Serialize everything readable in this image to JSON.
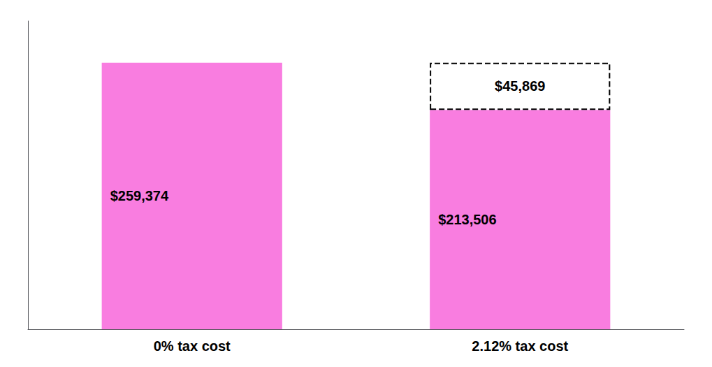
{
  "chart_data": {
    "type": "bar",
    "stacked": true,
    "categories": [
      "0% tax cost",
      "2.12% tax cost"
    ],
    "series": [
      {
        "color": "#f97de0",
        "values": [
          259374,
          213506
        ],
        "value_labels": [
          "$259,374",
          "$213,506"
        ]
      },
      {
        "color": "#ffffff",
        "line_style": "dashed",
        "values": [
          null,
          45869
        ],
        "value_labels": [
          null,
          "$45,869"
        ]
      }
    ],
    "data_labels": true,
    "ylim": [
      0,
      300000
    ],
    "grid": false,
    "tick_labels": "x"
  }
}
